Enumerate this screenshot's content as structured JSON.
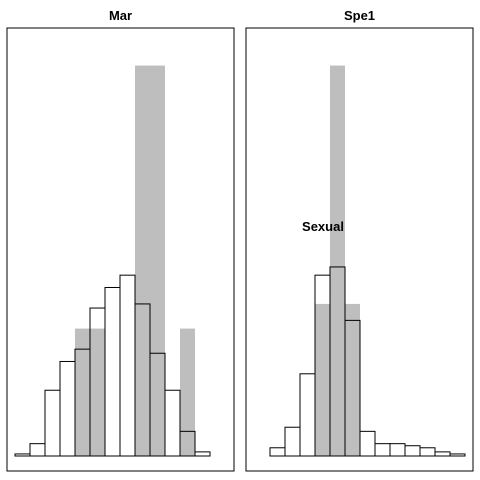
{
  "chart_data": [
    {
      "type": "bar",
      "title": "Mar",
      "annotation": "",
      "ylim": [
        0,
        100
      ],
      "series": [
        {
          "name": "",
          "style": "gray",
          "bars": [
            {
              "x0": 75,
              "x1": 105,
              "value": 31
            },
            {
              "x0": 135,
              "x1": 165,
              "value": 95
            },
            {
              "x0": 180,
              "x1": 195,
              "value": 31
            }
          ]
        },
        {
          "name": "",
          "style": "outline",
          "bars": [
            {
              "x0": 15,
              "x1": 30,
              "value": 0.5
            },
            {
              "x0": 30,
              "x1": 45,
              "value": 3
            },
            {
              "x0": 45,
              "x1": 60,
              "value": 16
            },
            {
              "x0": 60,
              "x1": 75,
              "value": 23
            },
            {
              "x0": 75,
              "x1": 90,
              "value": 26
            },
            {
              "x0": 90,
              "x1": 105,
              "value": 36
            },
            {
              "x0": 105,
              "x1": 120,
              "value": 41
            },
            {
              "x0": 120,
              "x1": 135,
              "value": 44
            },
            {
              "x0": 135,
              "x1": 150,
              "value": 37
            },
            {
              "x0": 150,
              "x1": 165,
              "value": 25
            },
            {
              "x0": 165,
              "x1": 180,
              "value": 16
            },
            {
              "x0": 180,
              "x1": 195,
              "value": 6
            },
            {
              "x0": 195,
              "x1": 210,
              "value": 1
            }
          ]
        }
      ]
    },
    {
      "type": "bar",
      "title": "Spe1",
      "annotation": "Sexual",
      "ylim": [
        0,
        100
      ],
      "series": [
        {
          "name": "",
          "style": "gray",
          "bars": [
            {
              "x0": 315,
              "x1": 330,
              "value": 37
            },
            {
              "x0": 330,
              "x1": 345,
              "value": 95
            },
            {
              "x0": 345,
              "x1": 360,
              "value": 37
            }
          ]
        },
        {
          "name": "",
          "style": "outline",
          "bars": [
            {
              "x0": 270,
              "x1": 285,
              "value": 2
            },
            {
              "x0": 285,
              "x1": 300,
              "value": 7
            },
            {
              "x0": 300,
              "x1": 315,
              "value": 20
            },
            {
              "x0": 315,
              "x1": 330,
              "value": 44
            },
            {
              "x0": 330,
              "x1": 345,
              "value": 46
            },
            {
              "x0": 345,
              "x1": 360,
              "value": 33
            },
            {
              "x0": 360,
              "x1": 375,
              "value": 6
            },
            {
              "x0": 375,
              "x1": 390,
              "value": 3
            },
            {
              "x0": 390,
              "x1": 405,
              "value": 3
            },
            {
              "x0": 405,
              "x1": 420,
              "value": 2.5
            },
            {
              "x0": 420,
              "x1": 435,
              "value": 2
            },
            {
              "x0": 435,
              "x1": 450,
              "value": 1
            },
            {
              "x0": 450,
              "x1": 465,
              "value": 0.5
            }
          ]
        }
      ]
    }
  ]
}
